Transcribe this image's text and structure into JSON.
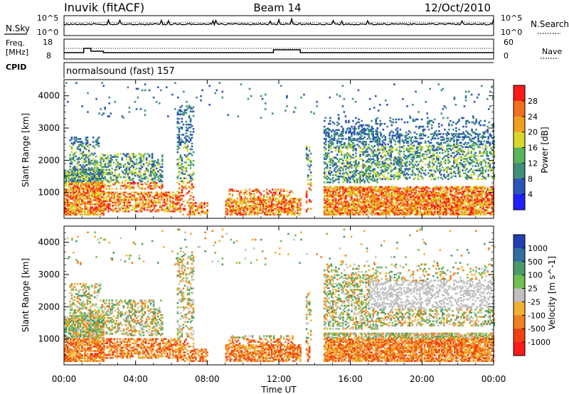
{
  "header": {
    "title": "Inuvik (fitACF)",
    "beam": "Beam 14",
    "date": "12/Oct/2010"
  },
  "noise_panel": {
    "left_label": "N.Sky",
    "right_label": "N.Search",
    "left_ticks": [
      "10^5",
      "10^0"
    ],
    "right_ticks": [
      "10^5",
      "10^0"
    ]
  },
  "freq_panel": {
    "left_label_1": "Freq.",
    "left_label_2": "[MHz]",
    "left_ticks": [
      "18",
      "8"
    ],
    "right_label": "Nave",
    "right_ticks": [
      "60",
      "0"
    ],
    "cpid_label": "CPID",
    "cpid_text": "normalsound (fast) 157"
  },
  "chart_data": [
    {
      "type": "heatmap",
      "name": "power",
      "ylabel": "Slant Range [km]",
      "y_ticks": [
        "1000",
        "2000",
        "3000",
        "4000"
      ],
      "ylim": [
        200,
        4500
      ],
      "colorbar_label": "Power [dB]",
      "colorbar_ticks": [
        "4",
        "8",
        "12",
        "16",
        "20",
        "24",
        "28"
      ],
      "colors": [
        "#1f1fff",
        "#2b55b8",
        "#3f8f7a",
        "#5ab55a",
        "#d8d82a",
        "#f0a020",
        "#f07020",
        "#ff1a1a"
      ]
    },
    {
      "type": "heatmap",
      "name": "velocity",
      "ylabel": "Slant Range [km]",
      "y_ticks": [
        "1000",
        "2000",
        "3000",
        "4000"
      ],
      "ylim": [
        200,
        4500
      ],
      "colorbar_label": "Velocity [m s^-1]",
      "colorbar_ticks": [
        "1000",
        "500",
        "100",
        "25",
        "-25",
        "-100",
        "-500",
        "-1000"
      ],
      "colors": [
        "#2040b0",
        "#3070a0",
        "#4a9a6a",
        "#70c050",
        "#c0c0c0",
        "#f0b030",
        "#f08020",
        "#f04010",
        "#ff1a1a"
      ]
    }
  ],
  "x_axis": {
    "ticks": [
      "00:00",
      "04:00",
      "08:00",
      "12:00",
      "16:00",
      "20:00",
      "00:00"
    ],
    "label": "Time UT"
  }
}
